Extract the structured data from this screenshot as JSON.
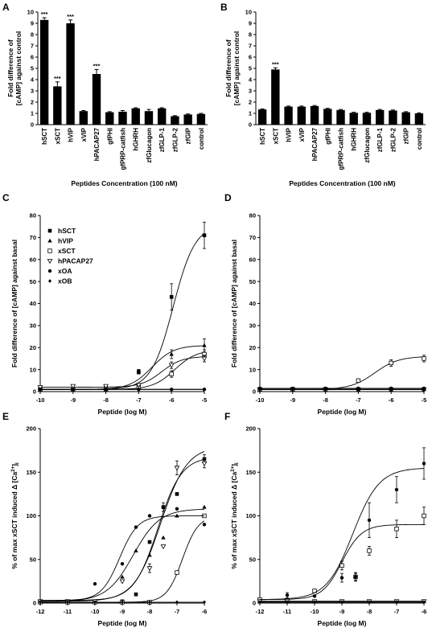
{
  "panels": {
    "A": {
      "letter": "A"
    },
    "B": {
      "letter": "B"
    },
    "C": {
      "letter": "C"
    },
    "D": {
      "letter": "D"
    },
    "E": {
      "letter": "E"
    },
    "F": {
      "letter": "F"
    }
  },
  "chart_data": [
    {
      "id": "A",
      "type": "bar",
      "ylabel_line1": "Fold difference of",
      "ylabel_line2": "[cAMP] against control",
      "xlabel": "Peptides Concentration (100 nM)",
      "ylim": [
        0,
        10
      ],
      "yticks": [
        0,
        1,
        2,
        3,
        4,
        5,
        6,
        7,
        8,
        9,
        10
      ],
      "categories": [
        "hSCT",
        "xSCT",
        "hVIP",
        "xVIP",
        "hPACAP27",
        "gfPHI",
        "gfPRP-catfish",
        "hGHRH",
        "zfGlucagon",
        "zfGLP-1",
        "zfGLP-2",
        "zfGIP",
        "control"
      ],
      "values": [
        9.3,
        3.4,
        9.0,
        1.2,
        4.5,
        1.1,
        1.15,
        1.45,
        1.2,
        1.45,
        0.75,
        0.9,
        0.95
      ],
      "errors": [
        0.2,
        0.4,
        0.3,
        0.05,
        0.4,
        0.05,
        0.1,
        0.05,
        0.15,
        0.05,
        0.05,
        0.05,
        0.05
      ],
      "significance": [
        "***",
        "***",
        "***",
        "",
        "***",
        "",
        "",
        "",
        "",
        "",
        "",
        "",
        ""
      ]
    },
    {
      "id": "B",
      "type": "bar",
      "ylabel_line1": "Fold difference of",
      "ylabel_line2": "[cAMP] against control",
      "xlabel": "Peptides Concentration (100 nM)",
      "ylim": [
        0,
        10
      ],
      "yticks": [
        0,
        1,
        2,
        3,
        4,
        5,
        6,
        7,
        8,
        9,
        10
      ],
      "categories": [
        "hSCT",
        "xSCT",
        "hVIP",
        "xVIP",
        "hPACAP27",
        "gfPHI",
        "gfPRP-catfish",
        "hGHRH",
        "zfGlucagon",
        "zfGLP-1",
        "zfGLP-2",
        "zfGIP",
        "control"
      ],
      "values": [
        1.35,
        4.9,
        1.6,
        1.6,
        1.65,
        1.4,
        1.3,
        1.05,
        1.05,
        1.3,
        1.25,
        1.1,
        1.0
      ],
      "errors": [
        0.05,
        0.15,
        0.05,
        0.05,
        0.05,
        0.05,
        0.05,
        0.05,
        0.05,
        0.05,
        0.05,
        0.05,
        0.05
      ],
      "significance": [
        "",
        "***",
        "",
        "",
        "",
        "",
        "",
        "",
        "",
        "",
        "",
        "",
        ""
      ]
    },
    {
      "id": "C",
      "type": "line",
      "ylabel": "Fold difference of [cAMP] against basal",
      "xlabel": "Peptide (log M)",
      "xlim": [
        -10,
        -5
      ],
      "ylim": [
        0,
        80
      ],
      "xticks": [
        -10,
        -9,
        -8,
        -7,
        -6,
        -5
      ],
      "yticks": [
        0,
        10,
        20,
        30,
        40,
        50,
        60,
        70,
        80
      ],
      "x": [
        -10,
        -9,
        -8,
        -7,
        -6,
        -5
      ],
      "series": [
        {
          "name": "hSCT",
          "marker": "square-filled",
          "values": [
            1,
            1,
            1.5,
            9,
            43,
            71
          ],
          "errors": [
            0,
            0,
            0.5,
            1,
            6,
            6
          ],
          "curve": {
            "bottom": 1,
            "top": 76,
            "logEC50": -5.95,
            "hill": 1.3
          }
        },
        {
          "name": "hVIP",
          "marker": "triangle-filled",
          "values": [
            1,
            1,
            2,
            9,
            17,
            21
          ],
          "errors": [
            0,
            0,
            0.3,
            1,
            2,
            3
          ],
          "curve": {
            "bottom": 1,
            "top": 21,
            "logEC50": -6.6,
            "hill": 1.3
          }
        },
        {
          "name": "xSCT",
          "marker": "square-open",
          "values": [
            1,
            1,
            1,
            2,
            8,
            17
          ],
          "errors": [
            0,
            0,
            0,
            0.5,
            1.5,
            2
          ],
          "curve": {
            "bottom": 1,
            "top": 19,
            "logEC50": -5.9,
            "hill": 1.3
          }
        },
        {
          "name": "hPACAP27",
          "marker": "triangle-down-open",
          "values": [
            2,
            2.5,
            2.5,
            3,
            12,
            15
          ],
          "errors": [
            0.5,
            0.5,
            0.5,
            0.5,
            1.5,
            1.5
          ],
          "curve": {
            "bottom": 2,
            "top": 16,
            "logEC50": -6.3,
            "hill": 1.4
          }
        },
        {
          "name": "xOA",
          "marker": "circle-filled",
          "values": [
            1,
            1,
            1,
            1,
            1,
            1
          ],
          "errors": [
            0,
            0,
            0,
            0,
            0,
            0
          ],
          "curve": {
            "bottom": 1,
            "top": 1,
            "logEC50": -7,
            "hill": 1
          }
        },
        {
          "name": "xOB",
          "marker": "diamond-filled",
          "values": [
            1,
            1,
            1,
            1,
            1,
            1
          ],
          "errors": [
            0,
            0,
            0,
            0,
            0,
            0
          ],
          "curve": {
            "bottom": 1,
            "top": 1,
            "logEC50": -7,
            "hill": 1
          }
        }
      ]
    },
    {
      "id": "D",
      "type": "line",
      "ylabel": "Fold difference of [cAMP] against basal",
      "xlabel": "Peptide (log M)",
      "xlim": [
        -10,
        -5
      ],
      "ylim": [
        0,
        80
      ],
      "xticks": [
        -10,
        -9,
        -8,
        -7,
        -6,
        -5
      ],
      "yticks": [
        0,
        10,
        20,
        30,
        40,
        50,
        60,
        70,
        80
      ],
      "x": [
        -10,
        -9,
        -8,
        -7,
        -6,
        -5
      ],
      "series": [
        {
          "name": "hSCT",
          "marker": "square-filled",
          "values": [
            1,
            1,
            1,
            1,
            1,
            1
          ],
          "errors": [
            0,
            0,
            0,
            0,
            0,
            0
          ],
          "curve": {
            "bottom": 1,
            "top": 1,
            "logEC50": -7,
            "hill": 1
          }
        },
        {
          "name": "hVIP",
          "marker": "triangle-filled",
          "values": [
            1,
            1,
            1,
            1,
            1,
            1
          ],
          "errors": [
            0,
            0,
            0,
            0,
            0,
            0
          ],
          "curve": {
            "bottom": 1,
            "top": 1,
            "logEC50": -7,
            "hill": 1
          }
        },
        {
          "name": "xSCT",
          "marker": "square-open",
          "values": [
            1,
            1,
            1,
            5,
            13,
            15
          ],
          "errors": [
            0,
            0,
            0,
            0.5,
            1.5,
            1.5
          ],
          "curve": {
            "bottom": 1,
            "top": 16,
            "logEC50": -6.5,
            "hill": 1.2
          }
        },
        {
          "name": "hPACAP27",
          "marker": "triangle-down-open",
          "values": [
            1,
            1,
            1,
            1,
            1,
            1
          ],
          "errors": [
            0,
            0,
            0,
            0,
            0,
            0
          ],
          "curve": {
            "bottom": 1,
            "top": 1,
            "logEC50": -7,
            "hill": 1
          }
        },
        {
          "name": "xOA",
          "marker": "circle-filled",
          "values": [
            1.5,
            1.5,
            1.5,
            1.5,
            1.5,
            1.5
          ],
          "errors": [
            0,
            0,
            0,
            0,
            0,
            0
          ],
          "curve": {
            "bottom": 1.5,
            "top": 1.5,
            "logEC50": -7,
            "hill": 1
          }
        },
        {
          "name": "xOB",
          "marker": "diamond-filled",
          "values": [
            1,
            1,
            1,
            1,
            1,
            1
          ],
          "errors": [
            0,
            0,
            0,
            0,
            0,
            0
          ],
          "curve": {
            "bottom": 1,
            "top": 1,
            "logEC50": -7,
            "hill": 1
          }
        }
      ]
    },
    {
      "id": "E",
      "type": "line",
      "ylabel": "% of max xSCT induced Δ [Ca2+]i",
      "xlabel": "Peptide (log M)",
      "xlim": [
        -12,
        -6
      ],
      "ylim": [
        0,
        200
      ],
      "xticks": [
        -12,
        -11,
        -10,
        -9,
        -8,
        -7,
        -6
      ],
      "yticks": [
        0,
        50,
        100,
        150,
        200
      ],
      "series": [
        {
          "name": "hSCT",
          "marker": "square-filled",
          "x": [
            -12,
            -11,
            -10,
            -9,
            -8.5,
            -8,
            -7.5,
            -7,
            -6
          ],
          "values": [
            1,
            1,
            1,
            2,
            10,
            70,
            110,
            125,
            165
          ],
          "errors": [
            0,
            0,
            0,
            0,
            0,
            0,
            5,
            0,
            5
          ],
          "curve": {
            "bottom": 2,
            "top": 180,
            "logEC50": -7.6,
            "hill": 0.9
          }
        },
        {
          "name": "hVIP",
          "marker": "triangle-filled",
          "x": [
            -12,
            -11,
            -10,
            -9,
            -8.5,
            -8,
            -7.5,
            -7,
            -6
          ],
          "values": [
            1,
            1,
            2,
            30,
            60,
            55,
            75,
            100,
            110
          ],
          "errors": [
            0,
            0,
            0,
            0,
            0,
            0,
            0,
            0,
            0
          ],
          "curve": {
            "bottom": 2,
            "top": 108,
            "logEC50": -8.6,
            "hill": 0.9
          }
        },
        {
          "name": "xSCT",
          "marker": "square-open",
          "x": [
            -12,
            -11,
            -10,
            -9,
            -8,
            -7,
            -6
          ],
          "values": [
            1,
            1,
            1,
            1,
            1,
            35,
            100
          ],
          "errors": [
            0,
            0,
            0,
            0,
            0,
            0,
            0
          ],
          "curve": {
            "bottom": 1,
            "top": 100,
            "logEC50": -6.8,
            "hill": 1.5
          }
        },
        {
          "name": "hPACAP27",
          "marker": "triangle-down-open",
          "x": [
            -12,
            -11,
            -10,
            -9,
            -8,
            -7.5,
            -7,
            -6
          ],
          "values": [
            2,
            2,
            2,
            25,
            40,
            65,
            155,
            160
          ],
          "errors": [
            0,
            0,
            0,
            0,
            5,
            0,
            8,
            5
          ],
          "curve": {
            "bottom": 3,
            "top": 168,
            "logEC50": -7.7,
            "hill": 1.0
          }
        },
        {
          "name": "xOA",
          "marker": "circle-filled",
          "x": [
            -10,
            -9,
            -8.5,
            -8,
            -7,
            -6
          ],
          "values": [
            22,
            45,
            87,
            100,
            108,
            90
          ],
          "errors": [
            0,
            0,
            0,
            0,
            0,
            0
          ],
          "curve": {
            "bottom": 3,
            "top": 100,
            "logEC50": -9.1,
            "hill": 1.3
          }
        },
        {
          "name": "xOB",
          "marker": "diamond-filled",
          "x": [
            -12,
            -11,
            -10,
            -9,
            -8,
            -7,
            -6
          ],
          "values": [
            1,
            1,
            1,
            1,
            1,
            1,
            1
          ],
          "errors": [
            0,
            0,
            0,
            0,
            0,
            0,
            0
          ],
          "curve": {
            "bottom": 1,
            "top": 1,
            "logEC50": -8,
            "hill": 1
          }
        }
      ]
    },
    {
      "id": "F",
      "type": "line",
      "ylabel": "% of max xSCT induced Δ [Ca2+]i",
      "xlabel": "Peptide (log M)",
      "xlim": [
        -12,
        -6
      ],
      "ylim": [
        0,
        200
      ],
      "xticks": [
        -12,
        -11,
        -10,
        -9,
        -8,
        -7,
        -6
      ],
      "yticks": [
        0,
        50,
        100,
        150,
        200
      ],
      "series": [
        {
          "name": "hSCT",
          "marker": "square-filled",
          "x": [
            -12,
            -11,
            -10,
            -9,
            -8,
            -7,
            -6
          ],
          "values": [
            2,
            2,
            2,
            2,
            2,
            2,
            2
          ],
          "errors": [
            0,
            0,
            0,
            0,
            0,
            0,
            0
          ],
          "curve": {
            "bottom": 2,
            "top": 2,
            "logEC50": -8,
            "hill": 1
          }
        },
        {
          "name": "hVIP",
          "marker": "triangle-filled",
          "x": [
            -12,
            -11,
            -10,
            -9,
            -8,
            -7,
            -6
          ],
          "values": [
            2,
            2,
            2,
            2,
            2,
            2,
            2
          ],
          "errors": [
            0,
            0,
            0,
            0,
            0,
            0,
            0
          ],
          "curve": {
            "bottom": 2,
            "top": 2,
            "logEC50": -8,
            "hill": 1
          }
        },
        {
          "name": "xSCT",
          "marker": "square-open",
          "x": [
            -12,
            -11,
            -10,
            -9,
            -8.5,
            -8,
            -7,
            -6
          ],
          "values": [
            4,
            3,
            14,
            43,
            30,
            60,
            85,
            100
          ],
          "errors": [
            0,
            0,
            0,
            5,
            4,
            5,
            10,
            10
          ],
          "curve": {
            "bottom": 4,
            "top": 90,
            "logEC50": -9.0,
            "hill": 1.2
          }
        },
        {
          "name": "hPACAP27",
          "marker": "triangle-down-open",
          "x": [
            -12,
            -11,
            -10,
            -9,
            -8,
            -7,
            -6
          ],
          "values": [
            2,
            2,
            2,
            2,
            2,
            2,
            2
          ],
          "errors": [
            0,
            0,
            0,
            0,
            0,
            0,
            0
          ],
          "curve": {
            "bottom": 2,
            "top": 2,
            "logEC50": -8,
            "hill": 1
          }
        },
        {
          "name": "xOA",
          "marker": "circle-filled",
          "x": [
            -11,
            -10,
            -9,
            -8.5,
            -8,
            -7,
            -6
          ],
          "values": [
            9,
            8,
            29,
            30,
            95,
            130,
            160
          ],
          "errors": [
            3,
            0,
            5,
            5,
            20,
            15,
            18
          ],
          "curve": {
            "bottom": 4,
            "top": 155,
            "logEC50": -8.6,
            "hill": 0.9
          }
        },
        {
          "name": "xOB",
          "marker": "diamond-filled",
          "x": [
            -12,
            -11,
            -10,
            -9,
            -8,
            -7,
            -6
          ],
          "values": [
            1,
            1,
            1,
            1,
            1,
            1,
            1
          ],
          "errors": [
            0,
            0,
            0,
            0,
            0,
            0,
            0
          ],
          "curve": {
            "bottom": 1,
            "top": 1,
            "logEC50": -8,
            "hill": 1
          }
        }
      ]
    }
  ]
}
